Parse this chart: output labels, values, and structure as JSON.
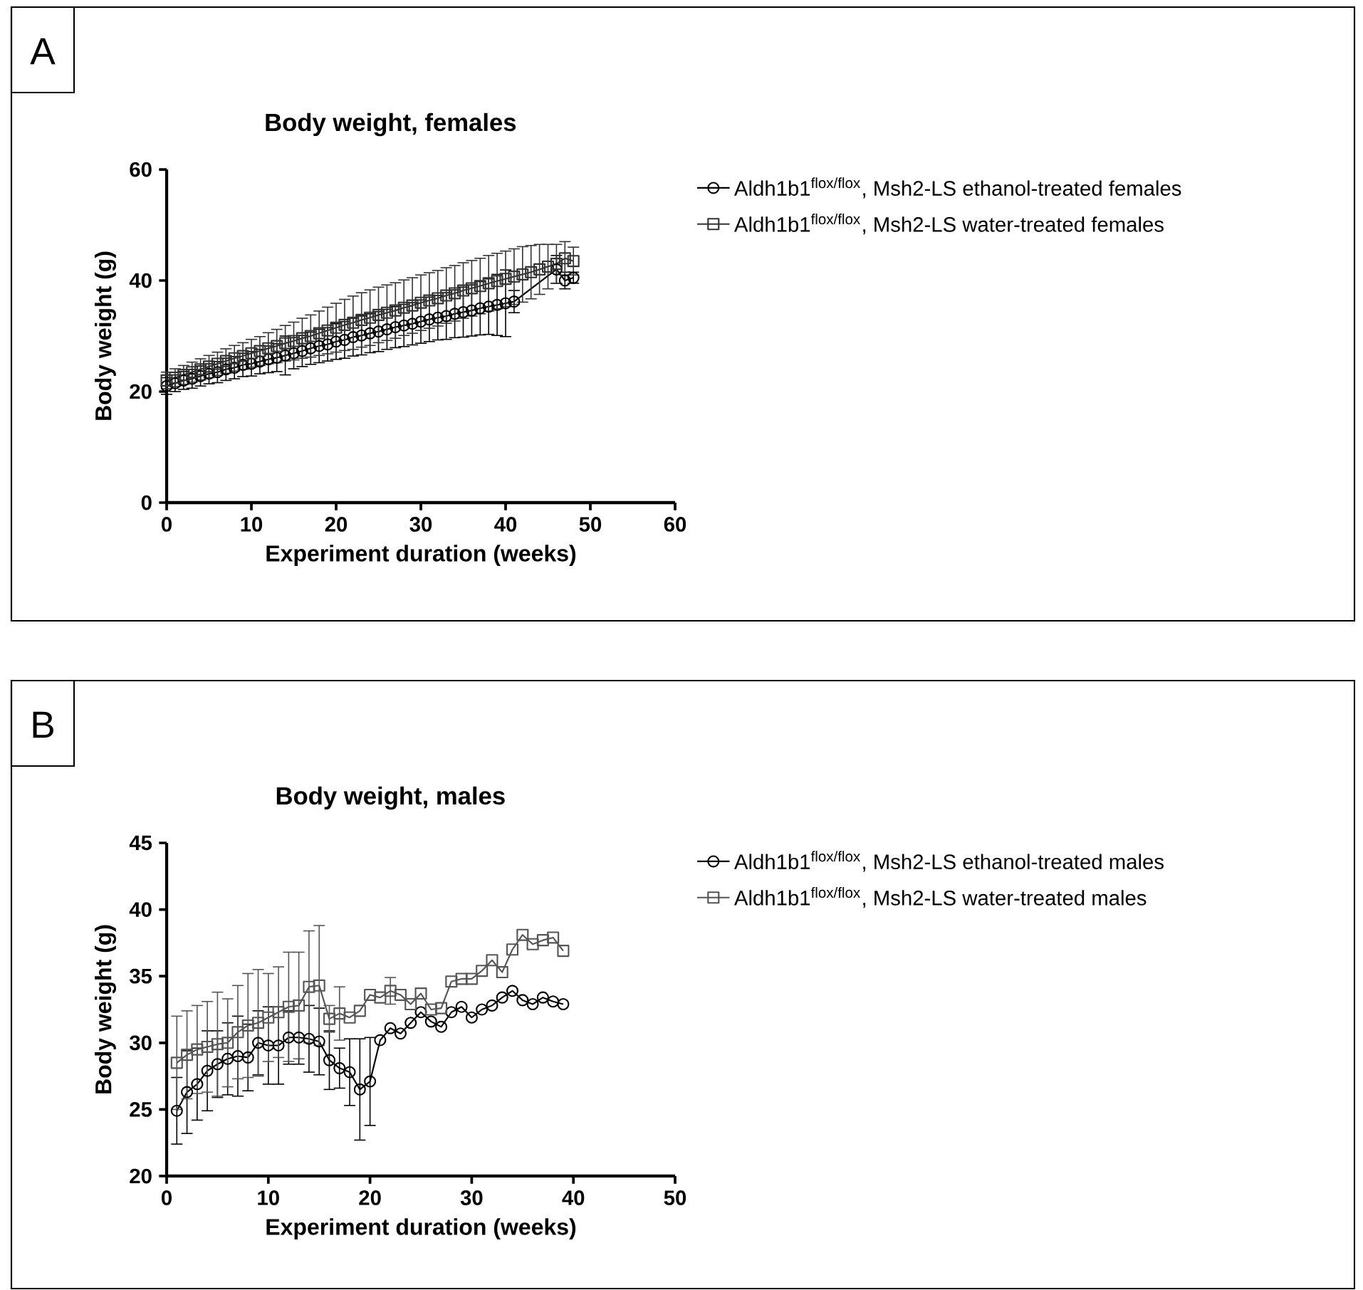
{
  "chart_data": [
    {
      "type": "line",
      "title": "Body weight, females",
      "xlabel": "Experiment duration (weeks)",
      "ylabel": "Body weight (g)",
      "annotations": [
        "A"
      ],
      "xlim": [
        0,
        60
      ],
      "xticks": [
        0,
        10,
        20,
        30,
        40,
        50,
        60
      ],
      "ylim": [
        0,
        60
      ],
      "yticks": [
        0,
        20,
        40,
        60
      ],
      "legend": "right",
      "line_style": "solid",
      "series": [
        {
          "name": "Aldh1b1$^{flox/flox}$, Msh2-LS ethanol-treated females",
          "color": "#000000",
          "marker": "circle",
          "x": [
            0,
            1,
            2,
            3,
            4,
            5,
            6,
            7,
            8,
            9,
            10,
            11,
            12,
            13,
            14,
            15,
            16,
            17,
            18,
            19,
            20,
            21,
            22,
            23,
            24,
            25,
            26,
            27,
            28,
            29,
            30,
            31,
            32,
            33,
            34,
            35,
            36,
            37,
            38,
            39,
            40,
            41,
            46,
            47,
            48
          ],
          "values": [
            21.0,
            21.5,
            22.0,
            22.3,
            22.8,
            23.2,
            23.5,
            24.0,
            24.3,
            24.8,
            25.0,
            25.4,
            25.8,
            26.1,
            26.5,
            26.9,
            27.3,
            27.8,
            28.2,
            28.5,
            29.0,
            29.3,
            29.8,
            30.1,
            30.5,
            30.8,
            31.2,
            31.6,
            31.9,
            32.2,
            32.6,
            33.0,
            33.3,
            33.6,
            34.0,
            34.3,
            34.6,
            35.0,
            35.3,
            35.6,
            35.9,
            36.2,
            42.0,
            40.0,
            40.5
          ],
          "errors": [
            1.5,
            1.5,
            1.6,
            1.7,
            1.8,
            1.8,
            1.9,
            2.0,
            2.0,
            2.1,
            2.2,
            2.2,
            2.4,
            2.5,
            3.5,
            2.8,
            2.8,
            2.9,
            3.0,
            3.0,
            3.2,
            3.3,
            3.4,
            3.5,
            3.5,
            3.6,
            3.6,
            3.7,
            3.8,
            3.8,
            3.9,
            4.0,
            4.0,
            4.2,
            4.3,
            4.5,
            4.6,
            4.8,
            5.0,
            5.5,
            6.0,
            2.0,
            2.5,
            1.5,
            1.0
          ]
        },
        {
          "name": "Aldh1b1$^{flox/flox}$, Msh2-LS water-treated females",
          "color": "#333333",
          "marker": "square",
          "x": [
            0,
            1,
            2,
            3,
            4,
            5,
            6,
            7,
            8,
            9,
            10,
            11,
            12,
            13,
            14,
            15,
            16,
            17,
            18,
            19,
            20,
            21,
            22,
            23,
            24,
            25,
            26,
            27,
            28,
            29,
            30,
            31,
            32,
            33,
            34,
            35,
            36,
            37,
            38,
            39,
            40,
            41,
            42,
            43,
            44,
            45,
            46,
            47,
            48
          ],
          "values": [
            22.0,
            22.5,
            23.0,
            23.5,
            24.0,
            24.5,
            25.0,
            25.5,
            26.0,
            26.4,
            26.9,
            27.3,
            27.8,
            28.2,
            28.7,
            29.1,
            29.6,
            30.0,
            30.5,
            31.0,
            31.5,
            32.0,
            32.4,
            32.9,
            33.3,
            33.8,
            34.2,
            34.6,
            35.1,
            35.5,
            36.0,
            36.4,
            36.8,
            37.3,
            37.7,
            38.2,
            38.6,
            39.0,
            39.5,
            39.9,
            40.3,
            40.7,
            41.1,
            41.5,
            42.0,
            42.5,
            43.0,
            44.0,
            43.5
          ],
          "errors": [
            1.5,
            1.6,
            1.7,
            1.8,
            1.9,
            2.0,
            2.1,
            2.2,
            2.3,
            2.4,
            2.5,
            2.6,
            2.8,
            3.0,
            3.2,
            3.4,
            3.6,
            3.8,
            4.0,
            4.2,
            4.4,
            4.6,
            4.8,
            4.9,
            5.0,
            5.0,
            5.0,
            5.0,
            5.0,
            5.0,
            5.0,
            5.0,
            5.0,
            5.0,
            5.0,
            5.0,
            5.0,
            5.0,
            5.0,
            5.0,
            5.0,
            5.0,
            5.0,
            4.8,
            4.5,
            4.0,
            3.5,
            3.0,
            2.5
          ]
        }
      ]
    },
    {
      "type": "line",
      "title": "Body weight, males",
      "xlabel": "Experiment duration (weeks)",
      "ylabel": "Body weight (g)",
      "annotations": [
        "B"
      ],
      "xlim": [
        0,
        50
      ],
      "xticks": [
        0,
        10,
        20,
        30,
        40,
        50
      ],
      "ylim": [
        20,
        45
      ],
      "yticks": [
        20,
        25,
        30,
        35,
        40,
        45
      ],
      "legend": "right",
      "line_style": "solid",
      "series": [
        {
          "name": "Aldh1b1$^{flox/flox}$, Msh2-LS ethanol-treated males",
          "color": "#000000",
          "marker": "circle",
          "x": [
            1,
            2,
            3,
            4,
            5,
            6,
            7,
            8,
            9,
            10,
            11,
            12,
            13,
            14,
            15,
            16,
            17,
            18,
            19,
            20,
            21,
            22,
            23,
            24,
            25,
            26,
            27,
            28,
            29,
            30,
            31,
            32,
            33,
            34,
            35,
            36,
            37,
            38,
            39
          ],
          "values": [
            24.9,
            26.3,
            26.9,
            27.9,
            28.4,
            28.8,
            29.0,
            28.9,
            30.0,
            29.8,
            29.8,
            30.4,
            30.4,
            30.3,
            30.1,
            28.7,
            28.1,
            27.8,
            26.5,
            27.1,
            30.2,
            31.1,
            30.7,
            31.5,
            32.3,
            31.6,
            31.2,
            32.3,
            32.7,
            31.9,
            32.5,
            32.8,
            33.4,
            33.9,
            33.2,
            32.9,
            33.4,
            33.1,
            32.9
          ],
          "errors": [
            2.5,
            3.1,
            2.7,
            3.0,
            2.5,
            2.7,
            3.0,
            2.5,
            2.4,
            2.9,
            2.9,
            2.0,
            2.0,
            2.5,
            2.5,
            2.2,
            1.5,
            2.5,
            3.8,
            3.3,
            null,
            null,
            null,
            null,
            null,
            null,
            null,
            null,
            null,
            null,
            null,
            null,
            null,
            null,
            null,
            null,
            null,
            null,
            null
          ]
        },
        {
          "name": "Aldh1b1$^{flox/flox}$, Msh2-LS water-treated males",
          "color": "#555555",
          "marker": "square",
          "x": [
            1,
            2,
            3,
            4,
            5,
            6,
            7,
            8,
            9,
            10,
            11,
            12,
            13,
            14,
            15,
            16,
            17,
            18,
            19,
            20,
            21,
            22,
            23,
            24,
            25,
            26,
            27,
            28,
            29,
            30,
            31,
            32,
            33,
            34,
            35,
            36,
            37,
            38,
            39
          ],
          "values": [
            28.5,
            29.1,
            29.5,
            29.7,
            29.9,
            30.0,
            30.8,
            31.3,
            31.5,
            31.9,
            32.3,
            32.7,
            32.8,
            34.2,
            34.3,
            31.8,
            32.2,
            31.9,
            32.4,
            33.6,
            33.4,
            33.9,
            33.6,
            32.9,
            33.7,
            32.5,
            32.6,
            34.6,
            34.8,
            34.8,
            35.4,
            36.2,
            35.3,
            37.0,
            38.1,
            37.4,
            37.7,
            37.9,
            36.9
          ],
          "errors": [
            3.5,
            3.3,
            3.3,
            3.4,
            3.9,
            3.3,
            3.5,
            3.9,
            4.0,
            3.3,
            3.4,
            4.1,
            4.0,
            4.2,
            4.5,
            1.0,
            2.0,
            null,
            null,
            null,
            null,
            1.0,
            null,
            null,
            null,
            null,
            null,
            null,
            null,
            null,
            null,
            null,
            null,
            null,
            null,
            null,
            null,
            null,
            null
          ]
        }
      ]
    }
  ]
}
